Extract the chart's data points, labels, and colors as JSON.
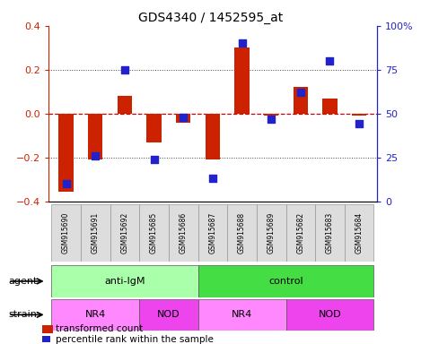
{
  "title": "GDS4340 / 1452595_at",
  "samples": [
    "GSM915690",
    "GSM915691",
    "GSM915692",
    "GSM915685",
    "GSM915686",
    "GSM915687",
    "GSM915688",
    "GSM915689",
    "GSM915682",
    "GSM915683",
    "GSM915684"
  ],
  "red_values": [
    -0.355,
    -0.21,
    0.08,
    -0.13,
    -0.04,
    -0.21,
    0.3,
    -0.01,
    0.12,
    0.07,
    -0.01
  ],
  "blue_values": [
    10,
    26,
    75,
    24,
    48,
    13,
    90,
    47,
    62,
    80,
    44
  ],
  "agent_groups": [
    {
      "label": "anti-IgM",
      "start": 0,
      "end": 5,
      "color": "#AAFFAA"
    },
    {
      "label": "control",
      "start": 5,
      "end": 11,
      "color": "#44DD44"
    }
  ],
  "strain_groups": [
    {
      "label": "NR4",
      "start": 0,
      "end": 3,
      "color": "#FF88FF"
    },
    {
      "label": "NOD",
      "start": 3,
      "end": 5,
      "color": "#EE44EE"
    },
    {
      "label": "NR4",
      "start": 5,
      "end": 8,
      "color": "#FF88FF"
    },
    {
      "label": "NOD",
      "start": 8,
      "end": 11,
      "color": "#EE44EE"
    }
  ],
  "ylim_left": [
    -0.4,
    0.4
  ],
  "ylim_right": [
    0,
    100
  ],
  "yticks_left": [
    -0.4,
    -0.2,
    0.0,
    0.2,
    0.4
  ],
  "yticks_right": [
    0,
    25,
    50,
    75,
    100
  ],
  "yticklabels_right": [
    "0",
    "25",
    "50",
    "75",
    "100%"
  ],
  "red_color": "#CC2200",
  "blue_color": "#2222CC",
  "zero_line_color": "#CC0000",
  "dot_line_color": "#444444",
  "bar_width": 0.5,
  "blue_marker_size": 35
}
